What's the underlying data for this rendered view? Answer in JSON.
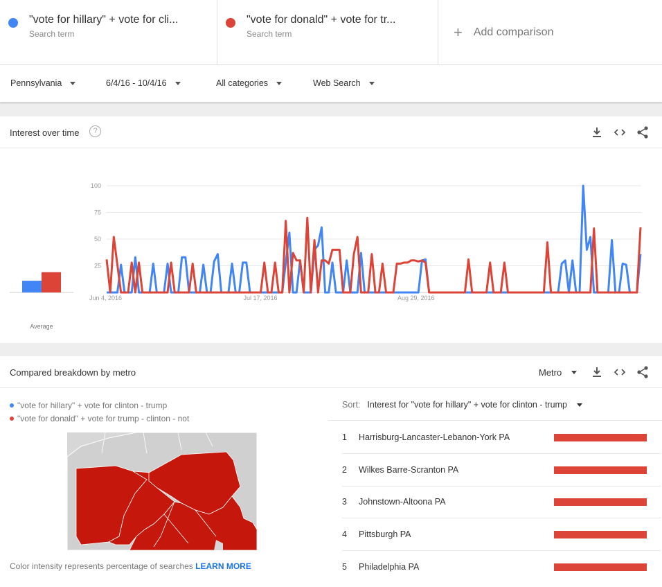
{
  "terms": [
    {
      "label": "\"vote for hillary\" + vote for cli...",
      "sub": "Search term",
      "color": "#4285f4"
    },
    {
      "label": "\"vote for donald\" + vote for tr...",
      "sub": "Search term",
      "color": "#db4437"
    }
  ],
  "add_comparison": "Add comparison",
  "filters": {
    "region": "Pennsylvania",
    "date": "6/4/16 - 10/4/16",
    "category": "All categories",
    "search_type": "Web Search"
  },
  "interest_card": {
    "title": "Interest over time",
    "help_icon": "?",
    "icons": [
      "download-icon",
      "embed-icon",
      "share-icon"
    ],
    "average_label": "Average"
  },
  "chart_data": {
    "type": "line",
    "ylim": [
      0,
      100
    ],
    "yticks": [
      "100",
      "75",
      "50",
      "25"
    ],
    "xtick_labels": [
      "Jun 4, 2016",
      "Jul 17, 2016",
      "Aug 29, 2016"
    ],
    "xtick_index": [
      0,
      43,
      86
    ],
    "grid": true,
    "average": [
      {
        "name": "hillary",
        "value": 11,
        "color": "#4285f4"
      },
      {
        "name": "donald",
        "value": 19,
        "color": "#db4437"
      }
    ],
    "series": [
      {
        "color": "#4285f4",
        "values": [
          0,
          0,
          0,
          0,
          26,
          0,
          0,
          0,
          33,
          0,
          0,
          0,
          0,
          27,
          0,
          0,
          0,
          27,
          0,
          0,
          0,
          33,
          33,
          0,
          0,
          0,
          0,
          26,
          0,
          0,
          29,
          36,
          0,
          0,
          0,
          27,
          0,
          0,
          28,
          28,
          0,
          0,
          0,
          0,
          0,
          0,
          0,
          0,
          0,
          0,
          28,
          56,
          0,
          0,
          30,
          0,
          0,
          0,
          40,
          44,
          61,
          0,
          0,
          28,
          0,
          0,
          0,
          30,
          0,
          0,
          0,
          37,
          0,
          0,
          0,
          0,
          0,
          0,
          0,
          0,
          0,
          0,
          0,
          0,
          0,
          0,
          0,
          0,
          30,
          31,
          0,
          0,
          0,
          0,
          0,
          0,
          0,
          0,
          0,
          0,
          0,
          0,
          0,
          0,
          0,
          0,
          0,
          0,
          0,
          0,
          0,
          0,
          0,
          0,
          0,
          0,
          0,
          0,
          0,
          0,
          0,
          0,
          0,
          0,
          0,
          0,
          0,
          27,
          30,
          0,
          30,
          0,
          0,
          100,
          40,
          52,
          0,
          0,
          0,
          0,
          0,
          49,
          0,
          0,
          27,
          26,
          0,
          0,
          0,
          36
        ]
      },
      {
        "color": "#db4437",
        "values": [
          31,
          0,
          52,
          26,
          0,
          0,
          0,
          28,
          0,
          28,
          0,
          0,
          0,
          0,
          0,
          0,
          0,
          0,
          28,
          0,
          0,
          0,
          0,
          0,
          27,
          0,
          0,
          0,
          0,
          0,
          0,
          0,
          0,
          0,
          0,
          0,
          0,
          0,
          0,
          0,
          0,
          0,
          0,
          0,
          28,
          0,
          0,
          28,
          0,
          0,
          67,
          0,
          37,
          30,
          30,
          0,
          70,
          0,
          49,
          0,
          30,
          30,
          27,
          40,
          40,
          40,
          0,
          0,
          0,
          36,
          52,
          0,
          0,
          0,
          36,
          0,
          0,
          27,
          0,
          0,
          0,
          27,
          27,
          28,
          28,
          30,
          30,
          29,
          30,
          28,
          0,
          0,
          0,
          0,
          0,
          0,
          0,
          0,
          0,
          0,
          0,
          31,
          0,
          0,
          0,
          0,
          0,
          28,
          0,
          0,
          0,
          28,
          0,
          0,
          0,
          0,
          0,
          0,
          0,
          0,
          0,
          0,
          0,
          47,
          0,
          0,
          0,
          0,
          0,
          0,
          0,
          0,
          0,
          0,
          0,
          0,
          60,
          0,
          0,
          0,
          0,
          0,
          0,
          0,
          0,
          0,
          0,
          0,
          0,
          61
        ]
      }
    ]
  },
  "breakdown_card": {
    "title": "Compared breakdown by metro",
    "metro_select": "Metro",
    "legend": [
      {
        "label": "\"vote for hillary\" + vote for clinton - trump",
        "color": "#4285f4"
      },
      {
        "label": "\"vote for donald\" + vote for trump - clinton - not",
        "color": "#db4437"
      }
    ],
    "map_colors": {
      "state": "#c5170c",
      "background": "#d7d7d7"
    },
    "footnote": "Color intensity represents percentage of searches",
    "learn_more": "LEARN MORE",
    "sort_label": "Sort:",
    "sort_value": "Interest for \"vote for hillary\" + vote for clinton - trump",
    "rankings": [
      {
        "rank": "1",
        "name": "Harrisburg-Lancaster-Lebanon-York PA",
        "value": 100
      },
      {
        "rank": "2",
        "name": "Wilkes Barre-Scranton PA",
        "value": 100
      },
      {
        "rank": "3",
        "name": "Johnstown-Altoona PA",
        "value": 100
      },
      {
        "rank": "4",
        "name": "Pittsburgh PA",
        "value": 100
      },
      {
        "rank": "5",
        "name": "Philadelphia PA",
        "value": 100
      }
    ]
  }
}
